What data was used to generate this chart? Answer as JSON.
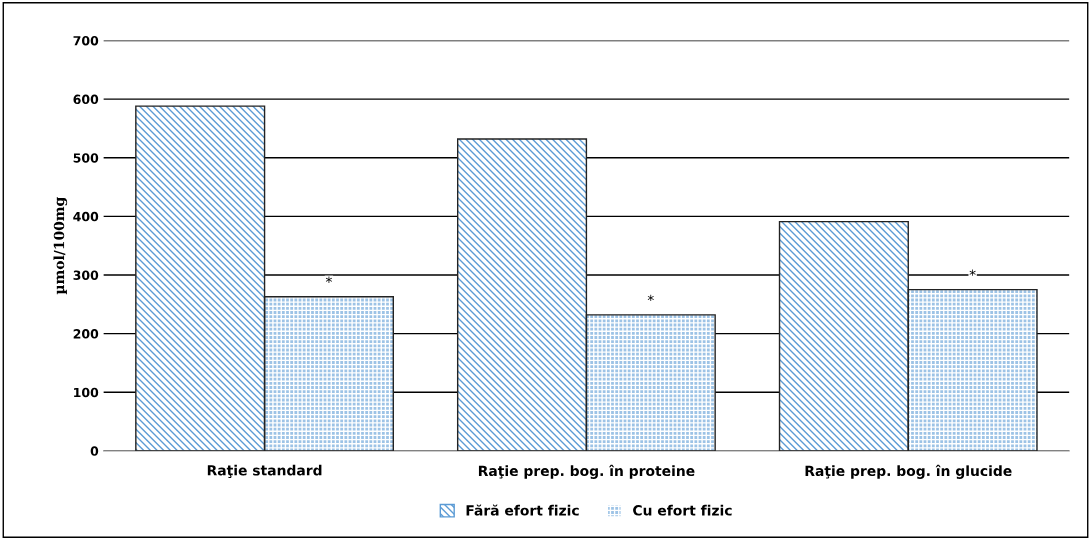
{
  "chart_data": {
    "type": "bar",
    "ylabel": "µmol/100mg",
    "categories": [
      "Raţie standard",
      "Raţie prep. bog. în proteine",
      "Raţie prep. bog. în glucide"
    ],
    "series": [
      {
        "name": "Fără efort fizic",
        "color": "#5b9bd5",
        "values": [
          588,
          532,
          391
        ]
      },
      {
        "name": "Cu efort fizic",
        "color": "#9dc3e6",
        "values": [
          263,
          232,
          275
        ]
      }
    ],
    "ylim": [
      0,
      700
    ],
    "yticks": [
      0,
      100,
      200,
      300,
      400,
      500,
      600,
      700
    ],
    "grid": "y",
    "legend": "bottom",
    "annotations": [
      "*",
      "*",
      "*"
    ]
  }
}
